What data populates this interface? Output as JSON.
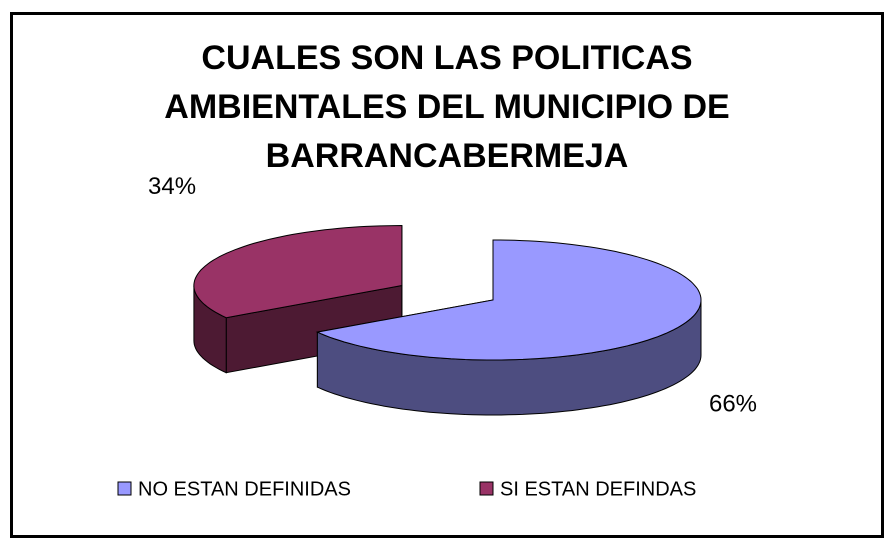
{
  "chart_data": {
    "type": "pie3d",
    "title": "CUALES SON LAS POLITICAS AMBIENTALES DEL MUNICIPIO DE BARRANCABERMEJA",
    "categories": [
      "NO ESTAN DEFINIDAS",
      "SI ESTAN DEFINDAS"
    ],
    "values": [
      66,
      34
    ],
    "value_labels": [
      "66%",
      "34%"
    ],
    "colors": [
      "#9999ff",
      "#993366"
    ],
    "legend": "bottom"
  }
}
